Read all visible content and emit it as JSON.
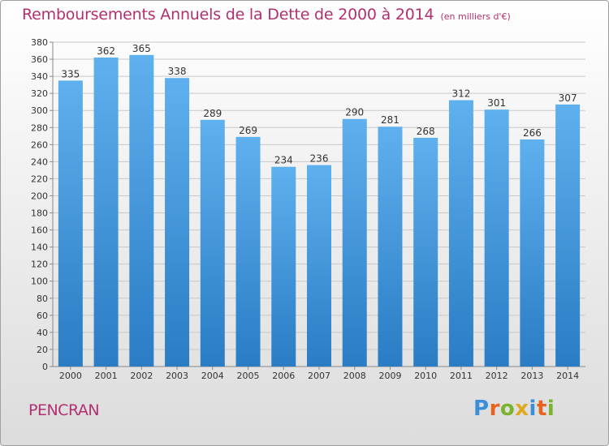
{
  "chart_data": {
    "type": "bar",
    "title": "Remboursements Annuels de la Dette de 2000 à 2014",
    "unit_label": "(en milliers d'€)",
    "categories": [
      "2000",
      "2001",
      "2002",
      "2003",
      "2004",
      "2005",
      "2006",
      "2007",
      "2008",
      "2009",
      "2010",
      "2011",
      "2012",
      "2013",
      "2014"
    ],
    "values": [
      335,
      362,
      365,
      338,
      289,
      269,
      234,
      236,
      290,
      281,
      268,
      312,
      301,
      266,
      307
    ],
    "xlabel": "",
    "ylabel": "",
    "ylim": [
      0,
      380
    ],
    "ytick_step": 20,
    "grid": true,
    "bar_color": "#4a9de0"
  },
  "footer": {
    "commune": "PENCRAN",
    "logo_letters": [
      "P",
      "r",
      "o",
      "x",
      "i",
      "t",
      "i"
    ],
    "logo_colors": [
      "#3a8fd8",
      "#e8641e",
      "#7ab42e",
      "#e0a81e",
      "#3a8fd8",
      "#e8641e",
      "#7ab42e"
    ]
  }
}
